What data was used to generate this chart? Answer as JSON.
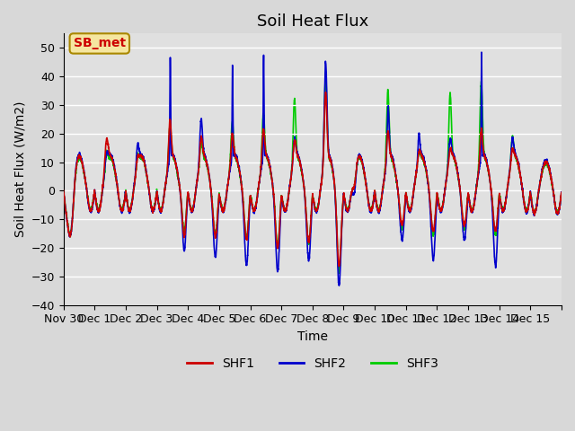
{
  "title": "Soil Heat Flux",
  "xlabel": "Time",
  "ylabel": "Soil Heat Flux (W/m2)",
  "ylim": [
    -40,
    55
  ],
  "yticks": [
    -40,
    -30,
    -20,
    -10,
    0,
    10,
    20,
    30,
    40,
    50
  ],
  "colors": {
    "SHF1": "#cc0000",
    "SHF2": "#0000cc",
    "SHF3": "#00cc00"
  },
  "legend_labels": [
    "SHF1",
    "SHF2",
    "SHF3"
  ],
  "annotation_text": "SB_met",
  "annotation_color": "#cc0000",
  "annotation_bg": "#f5e6a0",
  "annotation_edge": "#aa8800",
  "fig_bg": "#d8d8d8",
  "plot_bg": "#e0e0e0",
  "title_fontsize": 13,
  "label_fontsize": 10,
  "tick_fontsize": 9,
  "line_width": 1.2,
  "n_points": 3600,
  "x_start_day": -1,
  "x_end_day": 15,
  "x_tick_positions": [
    -1,
    0,
    1,
    2,
    3,
    4,
    5,
    6,
    7,
    8,
    9,
    10,
    11,
    12,
    13,
    14,
    15
  ],
  "x_tick_labels": [
    "Nov 30",
    "Dec 1",
    "Dec 2",
    "Dec 3",
    "Dec 4",
    "Dec 5",
    "Dec 6",
    "Dec 7",
    "Dec 8",
    "Dec 9",
    "Dec 10",
    "Dec 11",
    "Dec 12",
    "Dec 13",
    "Dec 14",
    "Dec 15",
    ""
  ]
}
